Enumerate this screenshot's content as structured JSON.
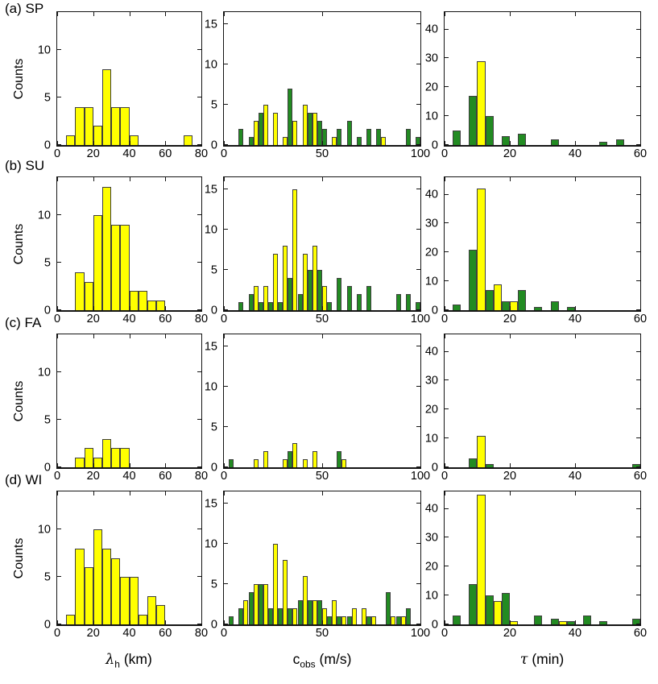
{
  "chart_data": {
    "type": "bar",
    "subtype": "histogram-grid",
    "grid": "off",
    "legend": "none",
    "ylabel": "Counts",
    "series_colors": {
      "yellow": "#ffff00",
      "green": "#228b22",
      "bar_edge": "#3f3f3f"
    },
    "columns": [
      {
        "xlabel_main": "λ",
        "xlabel_sub": "h",
        "xlabel_unit": " (km)",
        "xlim": [
          0,
          80
        ],
        "xticks": [
          0,
          20,
          40,
          60,
          80
        ],
        "ylim": [
          0,
          14
        ],
        "yticks": [
          0,
          5,
          10
        ],
        "binwidth": 5
      },
      {
        "xlabel_main": "c",
        "xlabel_sub": "obs",
        "xlabel_unit": " (m/s)",
        "xlim": [
          0,
          100
        ],
        "xticks": [
          0,
          50,
          100
        ],
        "ylim": [
          0,
          16.5
        ],
        "yticks": [
          0,
          5,
          10,
          15
        ],
        "binwidth": 2.5
      },
      {
        "xlabel_main": "τ",
        "xlabel_sub": "",
        "xlabel_unit": " (min)",
        "xlim": [
          0,
          60
        ],
        "xticks": [
          0,
          20,
          40,
          60
        ],
        "ylim": [
          0,
          46
        ],
        "yticks": [
          0,
          10,
          20,
          30,
          40
        ],
        "binwidth": 2.5
      }
    ],
    "rows": [
      {
        "label": "(a) SP",
        "panels": [
          {
            "yellow": [
              [
                5,
                1
              ],
              [
                10,
                4
              ],
              [
                15,
                4
              ],
              [
                20,
                2
              ],
              [
                25,
                8
              ],
              [
                30,
                4
              ],
              [
                35,
                4
              ],
              [
                40,
                1
              ],
              [
                70,
                1
              ]
            ],
            "green": []
          },
          {
            "green": [
              [
                7.5,
                2
              ],
              [
                12.5,
                1
              ],
              [
                17.5,
                4
              ],
              [
                32.5,
                7
              ],
              [
                42.5,
                4
              ],
              [
                47.5,
                3
              ],
              [
                50,
                2
              ],
              [
                57.5,
                2
              ],
              [
                62.5,
                3
              ],
              [
                67.5,
                1
              ],
              [
                72.5,
                2
              ],
              [
                77.5,
                2
              ],
              [
                92.5,
                2
              ],
              [
                97.5,
                1
              ]
            ],
            "yellow": [
              [
                15,
                3
              ],
              [
                20,
                5
              ],
              [
                25,
                4
              ],
              [
                30,
                1
              ],
              [
                35,
                3
              ],
              [
                40,
                5
              ],
              [
                45,
                4
              ],
              [
                55,
                1
              ],
              [
                80,
                1
              ]
            ]
          },
          {
            "green": [
              [
                2.5,
                5
              ],
              [
                7.5,
                17
              ],
              [
                12.5,
                10
              ],
              [
                17.5,
                3
              ],
              [
                22.5,
                4
              ],
              [
                32.5,
                2
              ],
              [
                47.5,
                1
              ],
              [
                52.5,
                2
              ]
            ],
            "yellow": [
              [
                10,
                29
              ]
            ]
          }
        ]
      },
      {
        "label": "(b) SU",
        "panels": [
          {
            "yellow": [
              [
                10,
                4
              ],
              [
                15,
                3
              ],
              [
                20,
                10
              ],
              [
                25,
                13
              ],
              [
                30,
                9
              ],
              [
                35,
                9
              ],
              [
                40,
                2
              ],
              [
                45,
                2
              ],
              [
                50,
                1
              ],
              [
                55,
                1
              ]
            ],
            "green": []
          },
          {
            "green": [
              [
                7.5,
                1
              ],
              [
                12.5,
                2
              ],
              [
                17.5,
                1
              ],
              [
                22.5,
                1
              ],
              [
                27.5,
                1
              ],
              [
                32.5,
                4
              ],
              [
                37.5,
                2
              ],
              [
                42.5,
                5
              ],
              [
                47.5,
                5
              ],
              [
                52.5,
                1
              ],
              [
                57.5,
                4
              ],
              [
                62.5,
                3
              ],
              [
                67.5,
                2
              ],
              [
                72.5,
                3
              ],
              [
                87.5,
                2
              ],
              [
                92.5,
                2
              ],
              [
                97.5,
                1
              ]
            ],
            "yellow": [
              [
                15,
                3
              ],
              [
                20,
                3
              ],
              [
                25,
                7
              ],
              [
                30,
                8
              ],
              [
                35,
                15
              ],
              [
                40,
                7
              ],
              [
                45,
                8
              ],
              [
                50,
                3
              ]
            ]
          },
          {
            "green": [
              [
                2.5,
                2
              ],
              [
                7.5,
                21
              ],
              [
                12.5,
                7
              ],
              [
                17.5,
                3
              ],
              [
                22.5,
                7
              ],
              [
                27.5,
                1
              ],
              [
                32.5,
                3
              ],
              [
                37.5,
                1
              ]
            ],
            "yellow": [
              [
                10,
                42
              ],
              [
                15,
                9
              ],
              [
                20,
                3
              ]
            ]
          }
        ]
      },
      {
        "label": "(c) FA",
        "panels": [
          {
            "yellow": [
              [
                10,
                1
              ],
              [
                15,
                2
              ],
              [
                20,
                1
              ],
              [
                25,
                3
              ],
              [
                30,
                2
              ],
              [
                35,
                2
              ]
            ],
            "green": []
          },
          {
            "green": [
              [
                2.5,
                1
              ],
              [
                32.5,
                2
              ],
              [
                57.5,
                2
              ]
            ],
            "yellow": [
              [
                15,
                1
              ],
              [
                20,
                2
              ],
              [
                30,
                1
              ],
              [
                35,
                3
              ],
              [
                40,
                1
              ],
              [
                45,
                2
              ],
              [
                60,
                1
              ]
            ]
          },
          {
            "green": [
              [
                7.5,
                3
              ],
              [
                12.5,
                1
              ],
              [
                57.5,
                1
              ]
            ],
            "yellow": [
              [
                10,
                11
              ]
            ]
          }
        ]
      },
      {
        "label": "(d) WI",
        "panels": [
          {
            "yellow": [
              [
                5,
                1
              ],
              [
                10,
                8
              ],
              [
                15,
                6
              ],
              [
                20,
                10
              ],
              [
                25,
                8
              ],
              [
                30,
                7
              ],
              [
                35,
                5
              ],
              [
                40,
                5
              ],
              [
                45,
                1
              ],
              [
                50,
                3
              ],
              [
                55,
                2
              ]
            ],
            "green": []
          },
          {
            "green": [
              [
                2.5,
                1
              ],
              [
                7.5,
                2
              ],
              [
                12.5,
                4
              ],
              [
                17.5,
                5
              ],
              [
                22.5,
                2
              ],
              [
                27.5,
                2
              ],
              [
                32.5,
                2
              ],
              [
                37.5,
                3
              ],
              [
                42.5,
                3
              ],
              [
                47.5,
                3
              ],
              [
                52.5,
                1
              ],
              [
                57.5,
                1
              ],
              [
                62.5,
                1
              ],
              [
                72.5,
                1
              ],
              [
                82.5,
                4
              ],
              [
                87.5,
                1
              ],
              [
                92.5,
                2
              ]
            ],
            "yellow": [
              [
                10,
                3
              ],
              [
                15,
                5
              ],
              [
                20,
                5
              ],
              [
                25,
                10
              ],
              [
                30,
                8
              ],
              [
                35,
                2
              ],
              [
                40,
                6
              ],
              [
                45,
                3
              ],
              [
                50,
                2
              ],
              [
                55,
                3
              ],
              [
                60,
                1
              ],
              [
                65,
                2
              ],
              [
                70,
                2
              ],
              [
                75,
                1
              ],
              [
                85,
                1
              ],
              [
                90,
                1
              ]
            ]
          },
          {
            "green": [
              [
                2.5,
                3
              ],
              [
                7.5,
                14
              ],
              [
                12.5,
                10
              ],
              [
                17.5,
                11
              ],
              [
                27.5,
                3
              ],
              [
                32.5,
                2
              ],
              [
                37.5,
                1
              ],
              [
                42.5,
                3
              ],
              [
                47.5,
                1
              ],
              [
                57.5,
                2
              ]
            ],
            "yellow": [
              [
                10,
                45
              ],
              [
                15,
                8
              ],
              [
                20,
                1
              ],
              [
                35,
                1
              ]
            ]
          }
        ]
      }
    ]
  }
}
